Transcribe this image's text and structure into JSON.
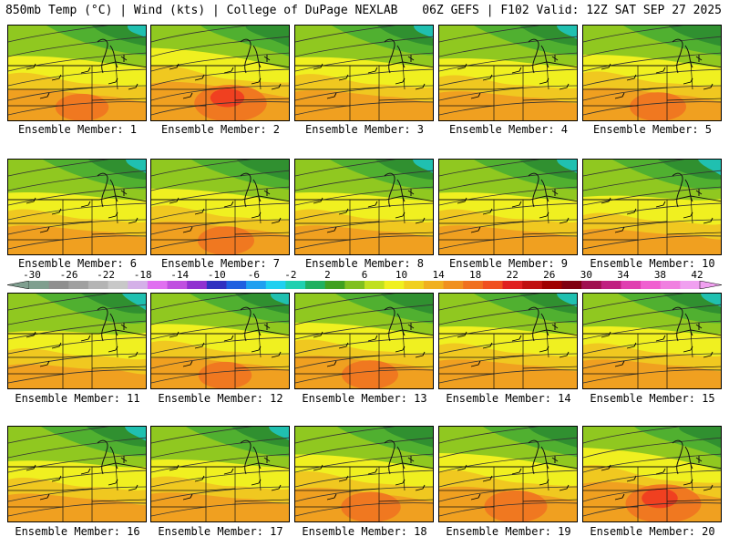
{
  "header": {
    "left": "850mb Temp (°C) | Wind (kts) | College of DuPage NEXLAB",
    "right": "06Z GEFS | F102 Valid: 12Z SAT SEP 27 2025"
  },
  "caption_prefix": "Ensemble Member:",
  "members": [
    {
      "label": "Ensemble Member: 1",
      "number": 1,
      "warmth": 0.55
    },
    {
      "label": "Ensemble Member: 2",
      "number": 2,
      "warmth": 0.85
    },
    {
      "label": "Ensemble Member: 3",
      "number": 3,
      "warmth": 0.5
    },
    {
      "label": "Ensemble Member: 4",
      "number": 4,
      "warmth": 0.45
    },
    {
      "label": "Ensemble Member: 5",
      "number": 5,
      "warmth": 0.6
    },
    {
      "label": "Ensemble Member: 6",
      "number": 6,
      "warmth": 0.45
    },
    {
      "label": "Ensemble Member: 7",
      "number": 7,
      "warmth": 0.6
    },
    {
      "label": "Ensemble Member: 8",
      "number": 8,
      "warmth": 0.45
    },
    {
      "label": "Ensemble Member: 9",
      "number": 9,
      "warmth": 0.45
    },
    {
      "label": "Ensemble Member: 10",
      "number": 10,
      "warmth": 0.3
    },
    {
      "label": "Ensemble Member: 11",
      "number": 11,
      "warmth": 0.25
    },
    {
      "label": "Ensemble Member: 12",
      "number": 12,
      "warmth": 0.55
    },
    {
      "label": "Ensemble Member: 13",
      "number": 13,
      "warmth": 0.6
    },
    {
      "label": "Ensemble Member: 14",
      "number": 14,
      "warmth": 0.45
    },
    {
      "label": "Ensemble Member: 15",
      "number": 15,
      "warmth": 0.45
    },
    {
      "label": "Ensemble Member: 16",
      "number": 16,
      "warmth": 0.4
    },
    {
      "label": "Ensemble Member: 17",
      "number": 17,
      "warmth": 0.45
    },
    {
      "label": "Ensemble Member: 18",
      "number": 18,
      "warmth": 0.65
    },
    {
      "label": "Ensemble Member: 19",
      "number": 19,
      "warmth": 0.7
    },
    {
      "label": "Ensemble Member: 20",
      "number": 20,
      "warmth": 0.9
    }
  ],
  "colorbar": {
    "ticks": [
      "-30",
      "-26",
      "-22",
      "-18",
      "-14",
      "-10",
      "-6",
      "-2",
      "2",
      "6",
      "10",
      "14",
      "18",
      "22",
      "26",
      "30",
      "34",
      "38",
      "42"
    ],
    "colors": [
      "#7f9f8f",
      "#8f8f8f",
      "#a0a0a0",
      "#b4b4b4",
      "#c8c8c8",
      "#d4b0e8",
      "#e070f0",
      "#c050e0",
      "#9030d0",
      "#3030c0",
      "#2060e0",
      "#20a0f0",
      "#20d0f0",
      "#20d0b0",
      "#20b060",
      "#40a020",
      "#80c020",
      "#c0e020",
      "#f0f020",
      "#f0d020",
      "#f0b020",
      "#f09020",
      "#f07020",
      "#f05020",
      "#e02020",
      "#c01010",
      "#a00000",
      "#800010",
      "#a01050",
      "#c02080",
      "#e040b0",
      "#f060d0",
      "#f080e0",
      "#f0a0f0"
    ]
  },
  "temp_colors": {
    "teal": "#20c0b0",
    "dkgreen": "#309030",
    "green": "#50b030",
    "ltgreen": "#90c820",
    "yellowgreen": "#c8e020",
    "yellow": "#f0f020",
    "gold": "#f0c820",
    "orange": "#f0a020",
    "dkorange": "#f07820",
    "red": "#f04020"
  }
}
